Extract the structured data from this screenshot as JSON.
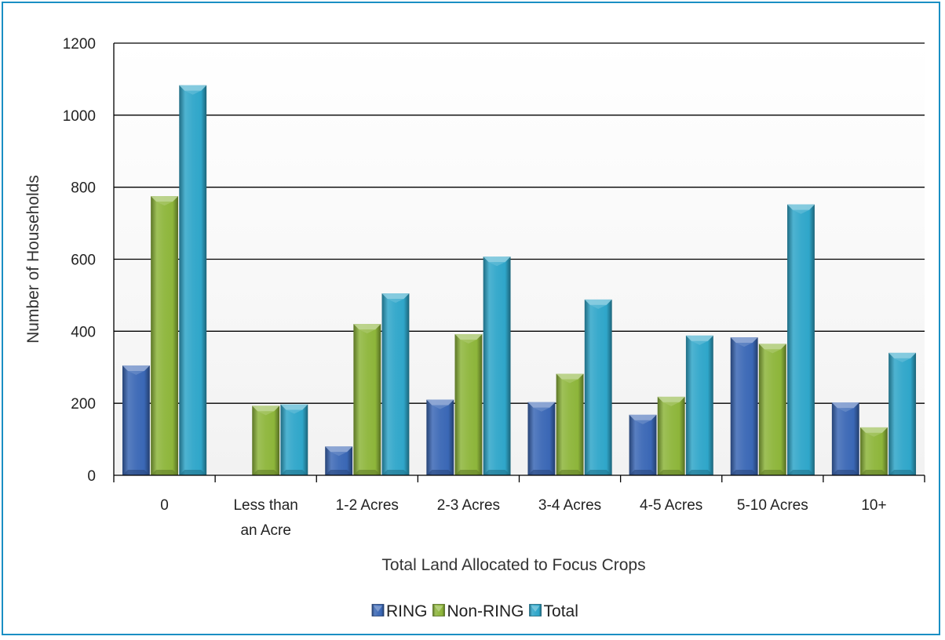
{
  "chart_data": {
    "type": "bar",
    "title": "",
    "xlabel": "Total Land Allocated to Focus Crops",
    "ylabel": "Number of Households",
    "ylim": [
      0,
      1200
    ],
    "yticks": [
      0,
      200,
      400,
      600,
      800,
      1000,
      1200
    ],
    "grid": true,
    "legend_position": "bottom",
    "categories": [
      [
        "0"
      ],
      [
        "Less than",
        "an Acre"
      ],
      [
        "1-2 Acres"
      ],
      [
        "2-3 Acres"
      ],
      [
        "3-4 Acres"
      ],
      [
        "4-5 Acres"
      ],
      [
        "5-10 Acres"
      ],
      [
        "10+"
      ]
    ],
    "series": [
      {
        "name": "RING",
        "color": "#3a67b5",
        "values": [
          305,
          0,
          80,
          210,
          203,
          168,
          383,
          202
        ]
      },
      {
        "name": "Non-RING",
        "color": "#8db53a",
        "values": [
          775,
          193,
          420,
          392,
          282,
          218,
          365,
          133
        ]
      },
      {
        "name": "Total",
        "color": "#2fa6c9",
        "values": [
          1083,
          197,
          505,
          607,
          488,
          388,
          752,
          340
        ]
      }
    ]
  }
}
